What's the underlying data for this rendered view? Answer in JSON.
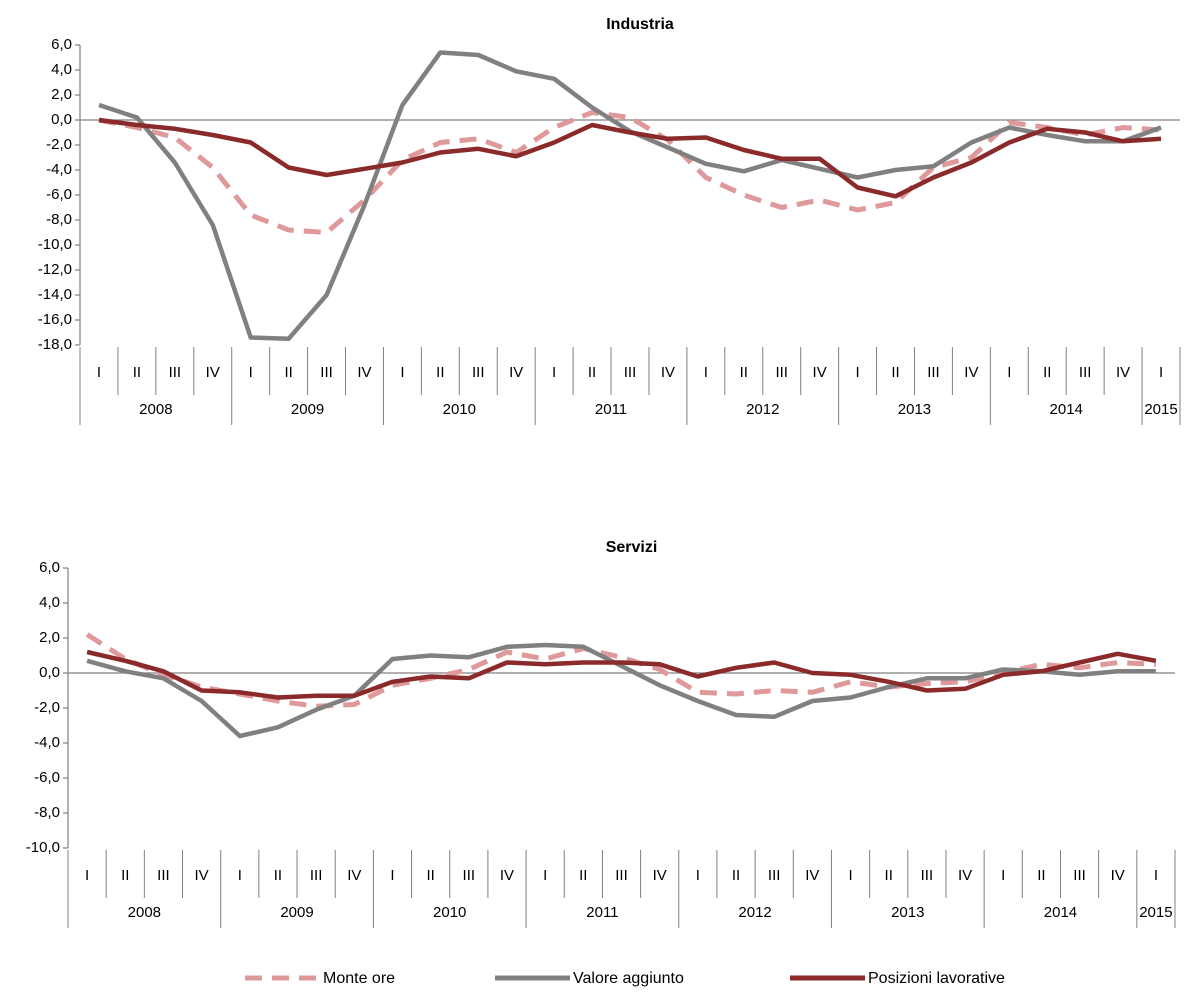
{
  "legend": {
    "position": "bottom",
    "items": [
      {
        "label": "Monte ore",
        "color": "#e0999a",
        "dash": true
      },
      {
        "label": "Valore aggiunto",
        "color": "#808080",
        "dash": false
      },
      {
        "label": "Posizioni lavorative",
        "color": "#8b2a2a",
        "dash": false
      }
    ]
  },
  "chart_data": [
    {
      "type": "line",
      "title": "Industria",
      "ylim": [
        -18,
        6
      ],
      "yticks": [
        "6,0",
        "4,0",
        "2,0",
        "0,0",
        "-2,0",
        "-4,0",
        "-6,0",
        "-8,0",
        "-10,0",
        "-12,0",
        "-14,0",
        "-16,0",
        "-18,0"
      ],
      "quarter_labels": [
        "I",
        "II",
        "III",
        "IV",
        "I",
        "II",
        "III",
        "IV",
        "I",
        "II",
        "III",
        "IV",
        "I",
        "II",
        "III",
        "IV",
        "I",
        "II",
        "III",
        "IV",
        "I",
        "II",
        "III",
        "IV",
        "I",
        "II",
        "III",
        "IV",
        "I"
      ],
      "years": [
        "2008",
        "2009",
        "2010",
        "2011",
        "2012",
        "2013",
        "2014",
        "2015"
      ],
      "series": [
        {
          "name": "Monte ore",
          "values": [
            0.0,
            -0.6,
            -1.4,
            -3.8,
            -7.6,
            -8.8,
            -9.0,
            -6.4,
            -3.2,
            -1.8,
            -1.5,
            -2.6,
            -0.6,
            0.6,
            0.2,
            -1.6,
            -4.6,
            -6.0,
            -7.0,
            -6.4,
            -7.2,
            -6.6,
            -3.8,
            -3.0,
            -0.2,
            -0.6,
            -1.2,
            -0.6,
            -0.8
          ]
        },
        {
          "name": "Valore aggiunto",
          "values": [
            1.2,
            0.2,
            -3.4,
            -8.4,
            -17.4,
            -17.5,
            -14.0,
            -6.8,
            1.2,
            5.4,
            5.2,
            3.9,
            3.3,
            1.0,
            -0.9,
            -2.2,
            -3.5,
            -4.1,
            -3.2,
            -3.9,
            -4.6,
            -4.0,
            -3.7,
            -1.8,
            -0.6,
            -1.2,
            -1.7,
            -1.7,
            -0.6
          ]
        },
        {
          "name": "Posizioni lavorative",
          "values": [
            0.0,
            -0.4,
            -0.7,
            -1.2,
            -1.8,
            -3.8,
            -4.4,
            -3.9,
            -3.4,
            -2.6,
            -2.3,
            -2.9,
            -1.8,
            -0.4,
            -1.0,
            -1.5,
            -1.4,
            -2.4,
            -3.1,
            -3.1,
            -5.4,
            -6.1,
            -4.6,
            -3.4,
            -1.8,
            -0.7,
            -1.0,
            -1.7,
            -1.5
          ]
        }
      ]
    },
    {
      "type": "line",
      "title": "Servizi",
      "ylim": [
        -10,
        6
      ],
      "yticks": [
        "6,0",
        "4,0",
        "2,0",
        "0,0",
        "-2,0",
        "-4,0",
        "-6,0",
        "-8,0",
        "-10,0"
      ],
      "quarter_labels": [
        "I",
        "II",
        "III",
        "IV",
        "I",
        "II",
        "III",
        "IV",
        "I",
        "II",
        "III",
        "IV",
        "I",
        "II",
        "III",
        "IV",
        "I",
        "II",
        "III",
        "IV",
        "I",
        "II",
        "III",
        "IV",
        "I",
        "II",
        "III",
        "IV",
        "I"
      ],
      "years": [
        "2008",
        "2009",
        "2010",
        "2011",
        "2012",
        "2013",
        "2014",
        "2015"
      ],
      "series": [
        {
          "name": "Monte ore",
          "values": [
            2.2,
            0.8,
            -0.1,
            -0.8,
            -1.2,
            -1.6,
            -1.9,
            -1.8,
            -0.7,
            -0.3,
            0.2,
            1.2,
            0.8,
            1.4,
            0.9,
            0.2,
            -1.1,
            -1.2,
            -1.0,
            -1.1,
            -0.5,
            -0.8,
            -0.6,
            -0.5,
            0.0,
            0.5,
            0.3,
            0.6,
            0.5
          ]
        },
        {
          "name": "Valore aggiunto",
          "values": [
            0.7,
            0.1,
            -0.3,
            -1.6,
            -3.6,
            -3.1,
            -2.1,
            -1.3,
            0.8,
            1.0,
            0.9,
            1.5,
            1.6,
            1.5,
            0.4,
            -0.7,
            -1.6,
            -2.4,
            -2.5,
            -1.6,
            -1.4,
            -0.8,
            -0.3,
            -0.3,
            0.2,
            0.1,
            -0.1,
            0.1,
            0.1
          ]
        },
        {
          "name": "Posizioni lavorative",
          "values": [
            1.2,
            0.7,
            0.1,
            -1.0,
            -1.1,
            -1.4,
            -1.3,
            -1.3,
            -0.5,
            -0.2,
            -0.3,
            0.6,
            0.5,
            0.6,
            0.6,
            0.5,
            -0.2,
            0.3,
            0.6,
            0.0,
            -0.1,
            -0.5,
            -1.0,
            -0.9,
            -0.1,
            0.1,
            0.6,
            1.1,
            0.7
          ]
        }
      ]
    }
  ]
}
